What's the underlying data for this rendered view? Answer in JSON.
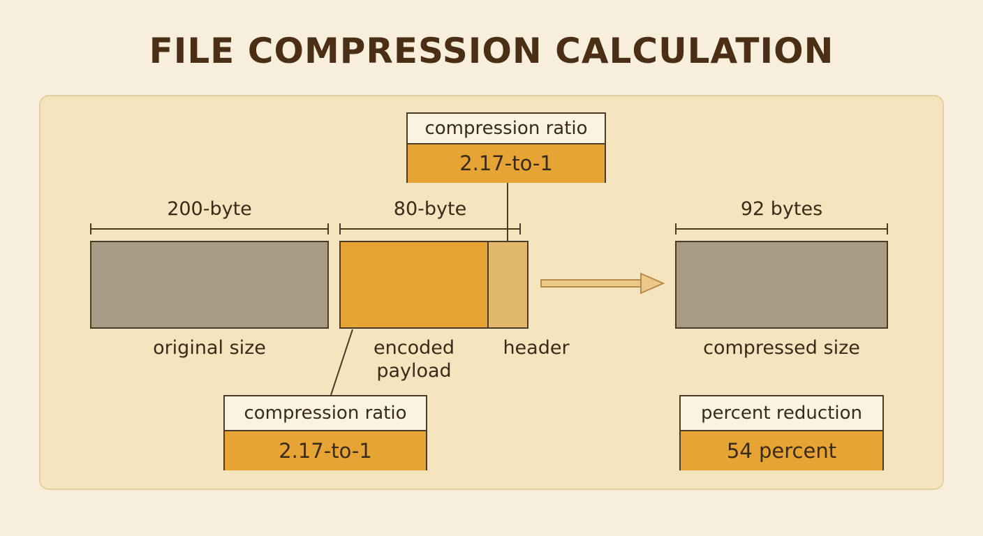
{
  "title": "FILE COMPRESSION CALCULATION",
  "original": {
    "dimension": "200-byte",
    "caption": "original size"
  },
  "encoded": {
    "dimension": "80-byte",
    "payload_line1": "encoded",
    "payload_line2": "payload",
    "header_label": "header"
  },
  "compressed": {
    "dimension": "92 bytes",
    "caption": "compressed size"
  },
  "ratio_top": {
    "label": "compression ratio",
    "value": "2.17-to-1"
  },
  "ratio_bottom": {
    "label": "compression ratio",
    "value": "2.17-to-1"
  },
  "reduction": {
    "label": "percent reduction",
    "value": "54 percent"
  },
  "colors": {
    "background": "#f7eedb",
    "panel": "#f4e5bf",
    "gray_block": "#a89b86",
    "gold": "#e6a434",
    "header_block": "#e2b96c",
    "ink": "#4a3a28"
  }
}
